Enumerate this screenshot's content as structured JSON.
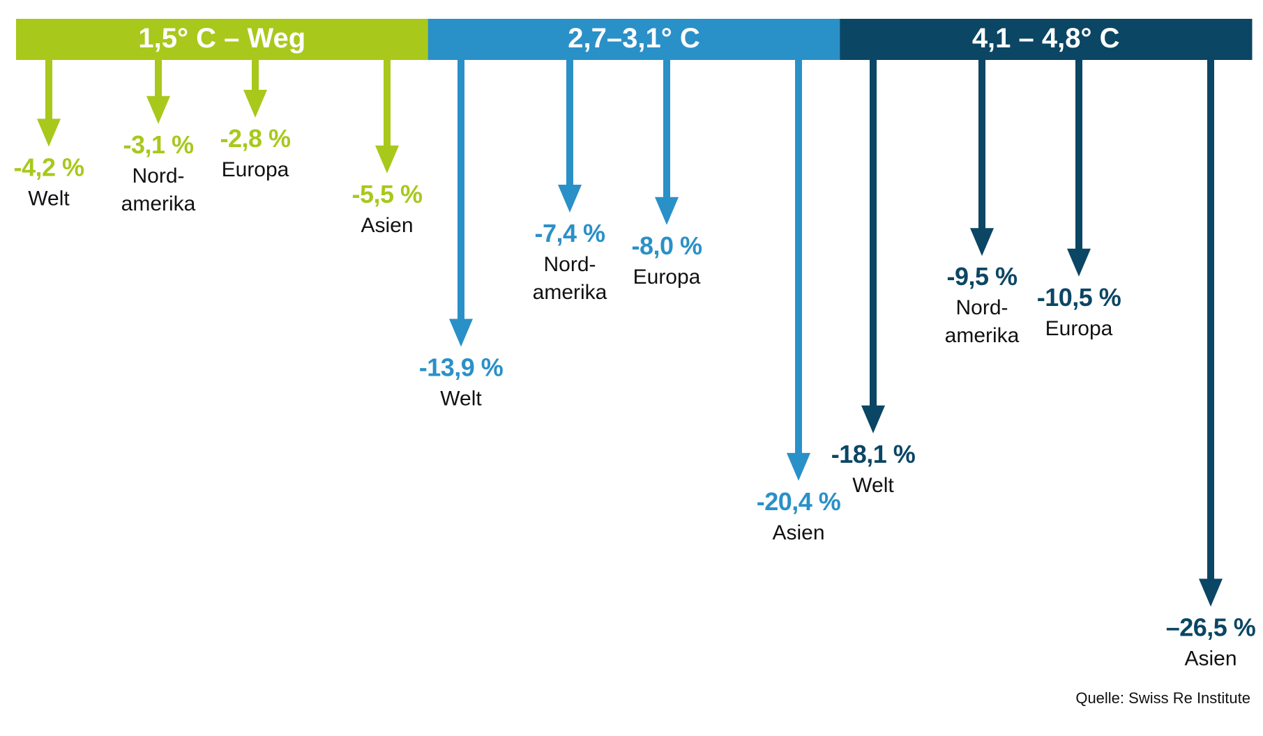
{
  "chart_data": {
    "type": "bar",
    "orientation": "downward-arrows",
    "source": "Quelle: Swiss Re Institute",
    "groups": [
      {
        "name": "1,5° C – Weg",
        "color": "#a8c81c",
        "items": [
          {
            "region": [
              "Welt"
            ],
            "value": -4.2,
            "label": "-4,2 %"
          },
          {
            "region": [
              "Nord-",
              "amerika"
            ],
            "value": -3.1,
            "label": "-3,1 %"
          },
          {
            "region": [
              "Europa"
            ],
            "value": -2.8,
            "label": "-2,8 %"
          },
          {
            "region": [
              "Asien"
            ],
            "value": -5.5,
            "label": "-5,5 %"
          }
        ]
      },
      {
        "name": "2,7–3,1° C",
        "color": "#2a90c8",
        "items": [
          {
            "region": [
              "Welt"
            ],
            "value": -13.9,
            "label": "-13,9 %"
          },
          {
            "region": [
              "Nord-",
              "amerika"
            ],
            "value": -7.4,
            "label": "-7,4 %"
          },
          {
            "region": [
              "Europa"
            ],
            "value": -8.0,
            "label": "-8,0 %"
          },
          {
            "region": [
              "Asien"
            ],
            "value": -20.4,
            "label": "-20,4 %"
          }
        ]
      },
      {
        "name": "4,1 – 4,8° C",
        "color": "#0b4664",
        "items": [
          {
            "region": [
              "Welt"
            ],
            "value": -18.1,
            "label": "-18,1 %"
          },
          {
            "region": [
              "Nord-",
              "amerika"
            ],
            "value": -9.5,
            "label": "-9,5 %"
          },
          {
            "region": [
              "Europa"
            ],
            "value": -10.5,
            "label": "-10,5 %"
          },
          {
            "region": [
              "Asien"
            ],
            "value": -26.5,
            "label": "–26,5 %"
          }
        ]
      }
    ]
  }
}
